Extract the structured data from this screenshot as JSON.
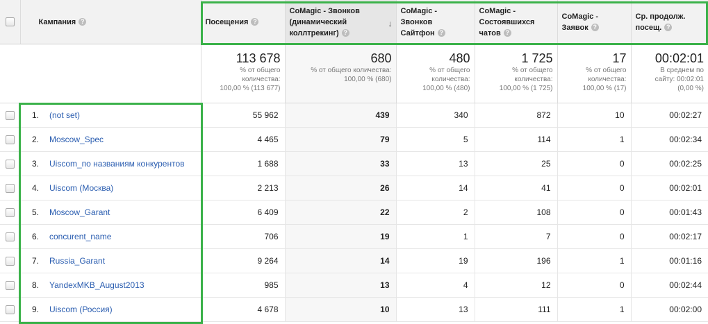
{
  "header": {
    "campaign_label": "Кампания",
    "columns": [
      {
        "lines": [
          "Посещения"
        ],
        "sorted": false
      },
      {
        "lines": [
          "CoMagic - Звонков",
          "(динамический",
          "коллтрекинг)"
        ],
        "sorted": true
      },
      {
        "lines": [
          "CoMagic -",
          "Звонков",
          "Сайтфон"
        ],
        "sorted": false
      },
      {
        "lines": [
          "CoMagic -",
          "Состоявшихся",
          "чатов"
        ],
        "sorted": false
      },
      {
        "lines": [
          "CoMagic -",
          "Заявок"
        ],
        "sorted": false
      },
      {
        "lines": [
          "Ср. продолж.",
          "посещ."
        ],
        "sorted": false
      }
    ],
    "help_icon": "question-mark-icon",
    "sort_icon": "arrow-down-icon"
  },
  "summary": [
    {
      "value": "113 678",
      "lines": [
        "% от общего",
        "количества:",
        "100,00 % (113 677)"
      ]
    },
    {
      "value": "680",
      "lines": [
        "% от общего количества:",
        "100,00 % (680)"
      ]
    },
    {
      "value": "480",
      "lines": [
        "% от общего",
        "количества:",
        "100,00 % (480)"
      ]
    },
    {
      "value": "1 725",
      "lines": [
        "% от общего",
        "количества:",
        "100,00 % (1 725)"
      ]
    },
    {
      "value": "17",
      "lines": [
        "% от общего",
        "количества:",
        "100,00 % (17)"
      ]
    },
    {
      "value": "00:02:01",
      "lines": [
        "В среднем по",
        "сайту: 00:02:01",
        "(0,00 %)"
      ]
    }
  ],
  "rows": [
    {
      "idx": "1.",
      "campaign": "(not set)",
      "values": [
        "55 962",
        "439",
        "340",
        "872",
        "10",
        "00:02:27"
      ]
    },
    {
      "idx": "2.",
      "campaign": "Moscow_Spec",
      "values": [
        "4 465",
        "79",
        "5",
        "114",
        "1",
        "00:02:34"
      ]
    },
    {
      "idx": "3.",
      "campaign": "Uiscom_по названиям конкурентов",
      "values": [
        "1 688",
        "33",
        "13",
        "25",
        "0",
        "00:02:25"
      ]
    },
    {
      "idx": "4.",
      "campaign": "Uiscom (Москва)",
      "values": [
        "2 213",
        "26",
        "14",
        "41",
        "0",
        "00:02:01"
      ]
    },
    {
      "idx": "5.",
      "campaign": "Moscow_Garant",
      "values": [
        "6 409",
        "22",
        "2",
        "108",
        "0",
        "00:01:43"
      ]
    },
    {
      "idx": "6.",
      "campaign": "concurent_name",
      "values": [
        "706",
        "19",
        "1",
        "7",
        "0",
        "00:02:17"
      ]
    },
    {
      "idx": "7.",
      "campaign": "Russia_Garant",
      "values": [
        "9 264",
        "14",
        "19",
        "196",
        "1",
        "00:01:16"
      ]
    },
    {
      "idx": "8.",
      "campaign": "YandexMKB_August2013",
      "values": [
        "985",
        "13",
        "4",
        "12",
        "0",
        "00:02:44"
      ]
    },
    {
      "idx": "9.",
      "campaign": "Uiscom (Россия)",
      "values": [
        "4 678",
        "10",
        "13",
        "111",
        "1",
        "00:02:00"
      ]
    }
  ],
  "colors": {
    "highlight": "#3bb24a",
    "link": "#2a5db0",
    "header_bg": "#f2f2f2"
  }
}
